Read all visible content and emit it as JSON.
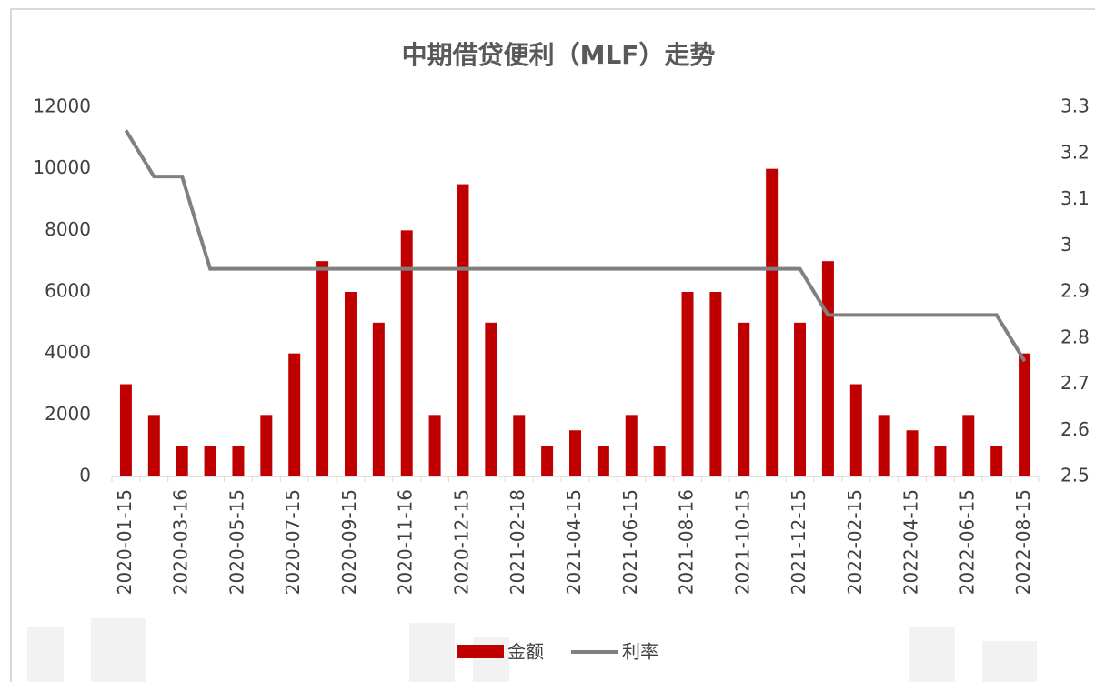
{
  "chart_data": {
    "type": "bar-line",
    "title": "中期借贷便利（MLF）走势",
    "categories": [
      "2020-01-15",
      null,
      "2020-03-16",
      null,
      "2020-05-15",
      null,
      "2020-07-15",
      null,
      "2020-09-15",
      null,
      "2020-11-16",
      null,
      "2020-12-15",
      null,
      "2021-02-18",
      null,
      "2021-04-15",
      null,
      "2021-06-15",
      null,
      "2021-08-16",
      null,
      "2021-10-15",
      null,
      "2021-12-15",
      null,
      "2022-02-15",
      null,
      "2022-04-15",
      null,
      "2022-06-15",
      null,
      "2022-08-15"
    ],
    "series": [
      {
        "name": "金额",
        "type": "bar",
        "color": "#c00000",
        "values": [
          3000,
          2000,
          1000,
          1000,
          1000,
          2000,
          4000,
          7000,
          6000,
          5000,
          8000,
          2000,
          9500,
          5000,
          2000,
          1000,
          1500,
          1000,
          2000,
          1000,
          6000,
          6000,
          5000,
          10000,
          5000,
          7000,
          3000,
          2000,
          1500,
          1000,
          2000,
          1000,
          4000
        ]
      },
      {
        "name": "利率",
        "type": "line",
        "axis": "y2",
        "color": "#808080",
        "values": [
          3.25,
          3.15,
          3.15,
          2.95,
          2.95,
          2.95,
          2.95,
          2.95,
          2.95,
          2.95,
          2.95,
          2.95,
          2.95,
          2.95,
          2.95,
          2.95,
          2.95,
          2.95,
          2.95,
          2.95,
          2.95,
          2.95,
          2.95,
          2.95,
          2.95,
          2.85,
          2.85,
          2.85,
          2.85,
          2.85,
          2.85,
          2.85,
          2.75
        ]
      }
    ],
    "ylim": [
      0,
      12000
    ],
    "yticks": [
      0,
      2000,
      4000,
      6000,
      8000,
      10000,
      12000
    ],
    "y2lim": [
      2.5,
      3.3
    ],
    "y2ticks": [
      2.5,
      2.6,
      2.7,
      2.8,
      2.9,
      3,
      3.1,
      3.2,
      3.3
    ],
    "grid": false,
    "legend": "bottom"
  }
}
